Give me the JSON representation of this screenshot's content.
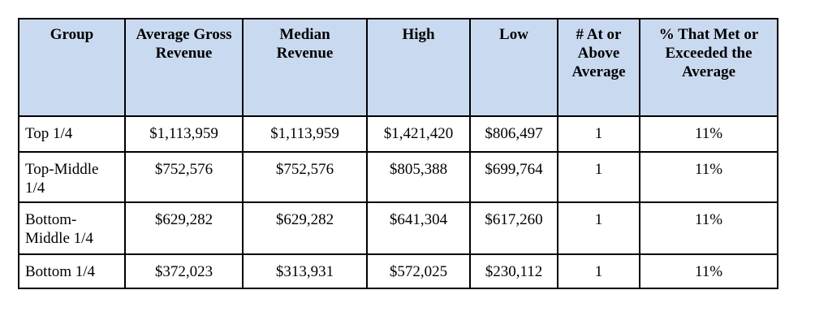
{
  "table": {
    "headers": [
      "Group",
      "Average Gross Revenue",
      "Median Revenue",
      "High",
      "Low",
      "# At or Above Average",
      "% That Met or Exceeded the Average"
    ],
    "rows": [
      {
        "group": "Top 1/4",
        "cells": [
          "$1,113,959",
          "$1,113,959",
          "$1,421,420",
          "$806,497",
          "1",
          "11%"
        ]
      },
      {
        "group": "Top-Middle 1/4",
        "cells": [
          "$752,576",
          "$752,576",
          "$805,388",
          "$699,764",
          "1",
          "11%"
        ]
      },
      {
        "group": "Bottom-Middle 1/4",
        "cells": [
          "$629,282",
          "$629,282",
          "$641,304",
          "$617,260",
          "1",
          "11%"
        ]
      },
      {
        "group": "Bottom 1/4",
        "cells": [
          "$372,023",
          "$313,931",
          "$572,025",
          "$230,112",
          "1",
          "11%"
        ]
      }
    ]
  }
}
